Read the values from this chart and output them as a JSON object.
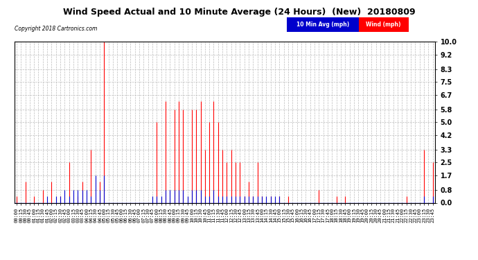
{
  "title": "Wind Speed Actual and 10 Minute Average (24 Hours)  (New)  20180809",
  "copyright": "Copyright 2018 Cartronics.com",
  "legend_labels": [
    "10 Min Avg (mph)",
    "Wind (mph)"
  ],
  "legend_colors": [
    "#0000cc",
    "#ff0000"
  ],
  "yticks": [
    0.0,
    0.8,
    1.7,
    2.5,
    3.3,
    4.2,
    5.0,
    5.8,
    6.7,
    7.5,
    8.3,
    9.2,
    10.0
  ],
  "ylim": [
    0.0,
    10.0
  ],
  "bg_color": "#ffffff",
  "grid_color": "#bbbbbb",
  "wind_actual_color": "#ff0000",
  "wind_avg_color": "#0000cc",
  "wind_actual": [
    0.4,
    0.0,
    1.3,
    0.0,
    0.4,
    0.0,
    0.8,
    0.0,
    1.3,
    0.0,
    0.4,
    0.0,
    2.5,
    0.0,
    0.4,
    1.3,
    0.0,
    3.3,
    0.0,
    1.3,
    10.0,
    0.0,
    0.0,
    0.0,
    0.0,
    0.0,
    0.0,
    0.0,
    0.0,
    0.0,
    0.0,
    0.0,
    5.0,
    0.0,
    6.3,
    0.0,
    5.8,
    6.3,
    5.8,
    0.0,
    5.8,
    5.8,
    6.3,
    3.3,
    5.0,
    6.3,
    5.0,
    3.3,
    2.5,
    3.3,
    2.5,
    2.5,
    0.4,
    1.3,
    0.4,
    2.5,
    0.4,
    0.0,
    0.4,
    0.0,
    0.4,
    0.0,
    0.4,
    0.0,
    0.0,
    0.0,
    0.0,
    0.0,
    0.0,
    0.8,
    0.0,
    0.0,
    0.0,
    0.4,
    0.0,
    0.4,
    0.0,
    0.0,
    0.0,
    0.0,
    0.0,
    0.0,
    0.0,
    0.0,
    0.0,
    0.0,
    0.0,
    0.0,
    0.0,
    0.4,
    0.0,
    0.0,
    0.0,
    3.3,
    0.0,
    2.5
  ],
  "wind_avg": [
    0.0,
    0.0,
    0.0,
    0.0,
    0.0,
    0.0,
    0.0,
    0.4,
    0.0,
    0.4,
    0.4,
    0.8,
    0.4,
    0.8,
    0.8,
    0.8,
    0.8,
    0.4,
    1.7,
    0.8,
    1.7,
    0.0,
    0.0,
    0.0,
    0.0,
    0.0,
    0.0,
    0.0,
    0.0,
    0.0,
    0.0,
    0.4,
    0.4,
    0.4,
    0.8,
    0.8,
    0.8,
    0.8,
    0.8,
    0.4,
    0.8,
    0.8,
    0.8,
    0.4,
    0.4,
    0.8,
    0.4,
    0.4,
    0.4,
    0.4,
    0.4,
    0.4,
    0.4,
    0.4,
    0.4,
    0.4,
    0.4,
    0.4,
    0.4,
    0.4,
    0.4,
    0.0,
    0.0,
    0.0,
    0.0,
    0.0,
    0.0,
    0.0,
    0.0,
    0.0,
    0.0,
    0.0,
    0.0,
    0.0,
    0.0,
    0.0,
    0.0,
    0.0,
    0.0,
    0.0,
    0.0,
    0.0,
    0.0,
    0.0,
    0.0,
    0.0,
    0.0,
    0.0,
    0.0,
    0.0,
    0.0,
    0.0,
    0.0,
    0.4,
    0.0,
    0.4
  ]
}
